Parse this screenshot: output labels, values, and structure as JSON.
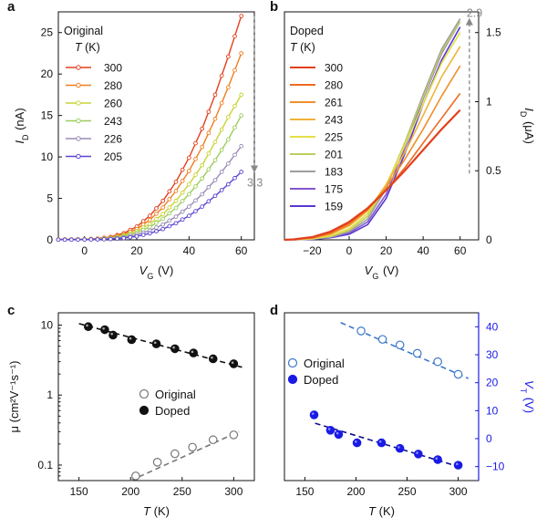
{
  "chart_data": [
    {
      "panel": "a",
      "type": "line",
      "title": "Original",
      "legend_title": "T (K)",
      "legend_title_var": "T",
      "legend_title_unit": " (K)",
      "xlabel_var": "V",
      "xlabel_sub": "G",
      "xlabel_unit": " (V)",
      "ylabel_var": "I",
      "ylabel_sub": "D",
      "ylabel_unit": " (nA)",
      "xlim": [
        -10,
        65
      ],
      "ylim": [
        0,
        27.5
      ],
      "xticks": [
        0,
        20,
        40,
        60
      ],
      "yticks": [
        0,
        5,
        10,
        15,
        20,
        25
      ],
      "annotation": "3.3",
      "annotation_arrow": [
        65,
        27,
        65,
        8.2
      ],
      "x": [
        -10,
        -5,
        0,
        5,
        10,
        15,
        20,
        25,
        30,
        35,
        40,
        45,
        50,
        55,
        60
      ],
      "series": [
        {
          "name": "300",
          "color": "#e2401e",
          "values": [
            0.05,
            0.06,
            0.08,
            0.15,
            0.35,
            0.8,
            1.6,
            2.9,
            4.7,
            7.0,
            9.9,
            13.4,
            17.5,
            22.1,
            27.0
          ]
        },
        {
          "name": "280",
          "color": "#ef7f1e",
          "values": [
            0.04,
            0.05,
            0.07,
            0.12,
            0.28,
            0.65,
            1.3,
            2.4,
            3.9,
            5.9,
            8.3,
            11.2,
            14.6,
            18.4,
            22.5
          ]
        },
        {
          "name": "260",
          "color": "#c9d436",
          "values": [
            0.03,
            0.04,
            0.06,
            0.1,
            0.22,
            0.52,
            1.05,
            1.9,
            3.1,
            4.7,
            6.7,
            9.0,
            11.8,
            14.8,
            17.5
          ]
        },
        {
          "name": "243",
          "color": "#9ccd5e",
          "values": [
            0.03,
            0.04,
            0.05,
            0.08,
            0.18,
            0.42,
            0.85,
            1.55,
            2.55,
            3.85,
            5.5,
            7.4,
            9.6,
            12.1,
            15.0
          ]
        },
        {
          "name": "226",
          "color": "#9a8bb5",
          "values": [
            0.02,
            0.03,
            0.04,
            0.06,
            0.13,
            0.3,
            0.62,
            1.12,
            1.85,
            2.8,
            4.0,
            5.5,
            7.2,
            9.2,
            11.3
          ]
        },
        {
          "name": "205",
          "color": "#5b45d1",
          "values": [
            0.02,
            0.02,
            0.03,
            0.05,
            0.09,
            0.2,
            0.42,
            0.78,
            1.3,
            2.0,
            2.9,
            4.0,
            5.3,
            6.7,
            8.2
          ]
        }
      ]
    },
    {
      "panel": "b",
      "type": "line",
      "title": "Doped",
      "legend_title": "T (K)",
      "legend_title_var": "T",
      "legend_title_unit": " (K)",
      "xlabel_var": "V",
      "xlabel_sub": "G",
      "xlabel_unit": " (V)",
      "ylabel_var": "I",
      "ylabel_sub": "D",
      "ylabel_unit": " (μA)",
      "xlim": [
        -35,
        70
      ],
      "ylim": [
        0,
        1.65
      ],
      "xticks": [
        -20,
        0,
        20,
        40,
        60
      ],
      "yticks": [
        0,
        0.5,
        1,
        1.5
      ],
      "ytick_labels": [
        "0",
        "0.5",
        "1",
        "1.5"
      ],
      "annotation": "2.9",
      "annotation_arrow": [
        65,
        0.48,
        65,
        1.6
      ],
      "x": [
        -35,
        -30,
        -20,
        -10,
        0,
        10,
        20,
        30,
        40,
        50,
        60
      ],
      "series": [
        {
          "name": "300",
          "color": "#e2401e",
          "values": [
            0.0,
            0.003,
            0.02,
            0.06,
            0.13,
            0.23,
            0.36,
            0.5,
            0.65,
            0.8,
            0.94
          ]
        },
        {
          "name": "280",
          "color": "#ee6a22",
          "values": [
            0.0,
            0.003,
            0.015,
            0.05,
            0.12,
            0.22,
            0.36,
            0.52,
            0.7,
            0.88,
            1.06
          ]
        },
        {
          "name": "261",
          "color": "#ef8f2a",
          "values": [
            0.0,
            0.002,
            0.013,
            0.045,
            0.11,
            0.22,
            0.38,
            0.58,
            0.8,
            1.04,
            1.26
          ]
        },
        {
          "name": "243",
          "color": "#f0b23a",
          "values": [
            0.0,
            0.002,
            0.011,
            0.04,
            0.1,
            0.21,
            0.4,
            0.63,
            0.9,
            1.18,
            1.4
          ]
        },
        {
          "name": "225",
          "color": "#e3e045",
          "values": [
            0.0,
            0.001,
            0.008,
            0.03,
            0.08,
            0.19,
            0.4,
            0.68,
            0.98,
            1.28,
            1.5
          ]
        },
        {
          "name": "201",
          "color": "#bccf60",
          "values": [
            0.0,
            0.001,
            0.007,
            0.025,
            0.07,
            0.17,
            0.39,
            0.7,
            1.03,
            1.36,
            1.58
          ]
        },
        {
          "name": "183",
          "color": "#9e9e9e",
          "values": [
            0.0,
            0.001,
            0.006,
            0.02,
            0.06,
            0.15,
            0.37,
            0.7,
            1.05,
            1.38,
            1.6
          ]
        },
        {
          "name": "175",
          "color": "#8457cf",
          "values": [
            0.0,
            0.001,
            0.005,
            0.018,
            0.05,
            0.13,
            0.33,
            0.66,
            1.02,
            1.35,
            1.58
          ]
        },
        {
          "name": "159",
          "color": "#5838d0",
          "values": [
            0.0,
            0.0,
            0.004,
            0.015,
            0.04,
            0.11,
            0.3,
            0.62,
            0.98,
            1.3,
            1.54
          ]
        }
      ]
    },
    {
      "panel": "c",
      "type": "scatter",
      "yscale": "log",
      "xlabel_var": "T",
      "xlabel_unit": " (K)",
      "ylabel": "μ (cm²V⁻¹s⁻¹)",
      "xlim": [
        130,
        320
      ],
      "ylim": [
        0.06,
        15
      ],
      "xticks": [
        150,
        200,
        250,
        300
      ],
      "yticks": [
        0.1,
        1,
        10
      ],
      "ytick_labels": [
        "0.1",
        "1",
        "10"
      ],
      "series": [
        {
          "name": "Original",
          "marker": "open-circle",
          "color": "#777777",
          "x": [
            205,
            226,
            243,
            260,
            280,
            300
          ],
          "values": [
            0.07,
            0.11,
            0.145,
            0.18,
            0.23,
            0.27
          ],
          "fit": [
            [
              200,
              0.06
            ],
            [
              305,
              0.3
            ]
          ]
        },
        {
          "name": "Doped",
          "marker": "filled-circle",
          "color": "#111111",
          "x": [
            159,
            175,
            183,
            201,
            225,
            243,
            261,
            280,
            300
          ],
          "values": [
            9.5,
            8.6,
            7.2,
            6.2,
            5.4,
            4.6,
            4.0,
            3.3,
            2.8
          ],
          "fit": [
            [
              150,
              10.5
            ],
            [
              308,
              2.5
            ]
          ]
        }
      ]
    },
    {
      "panel": "d",
      "type": "scatter",
      "xlabel_var": "T",
      "xlabel_unit": " (K)",
      "ylabel_var": "V",
      "ylabel_sub": "T",
      "ylabel_unit": " (V)",
      "xlim": [
        130,
        320
      ],
      "ylim": [
        -15,
        45
      ],
      "xticks": [
        150,
        200,
        250,
        300
      ],
      "yticks": [
        -10,
        0,
        10,
        20,
        30,
        40
      ],
      "axis_color": "#1a1ae6",
      "series": [
        {
          "name": "Original",
          "marker": "open-circle",
          "color": "#3a78c9",
          "x": [
            205,
            226,
            243,
            260,
            280,
            300
          ],
          "values": [
            38.5,
            35.5,
            33.5,
            30.5,
            27.5,
            23.0
          ],
          "fit": [
            [
              185,
              41.5
            ],
            [
              310,
              21.5
            ]
          ]
        },
        {
          "name": "Doped",
          "marker": "filled-circle",
          "color": "#1a1ae6",
          "x": [
            159,
            175,
            183,
            201,
            225,
            243,
            261,
            280,
            300
          ],
          "values": [
            8.5,
            3.0,
            1.5,
            -1.5,
            -1.5,
            -3.5,
            -5.5,
            -7.5,
            -9.5
          ],
          "fit": [
            [
              160,
              5.5
            ],
            [
              305,
              -10.5
            ]
          ]
        }
      ]
    }
  ]
}
